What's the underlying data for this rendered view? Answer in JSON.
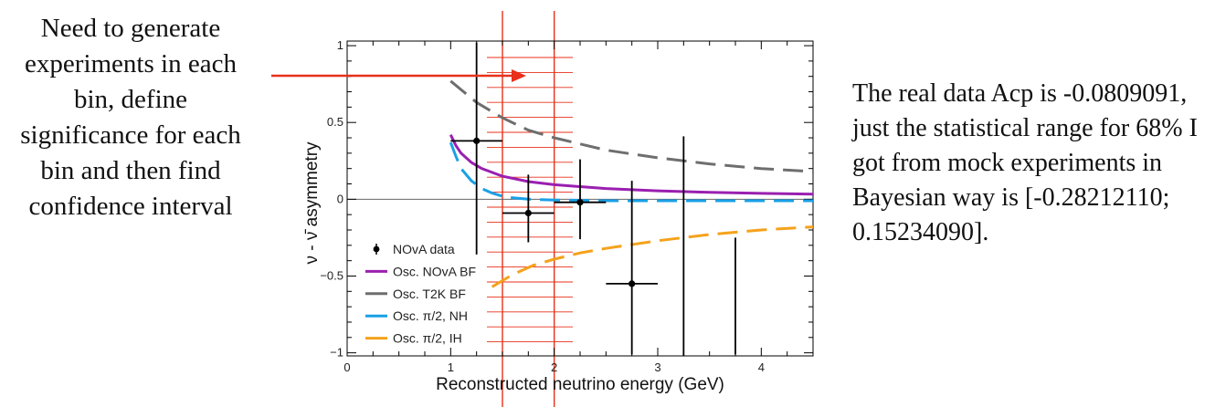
{
  "annotations": {
    "left_note": "Need to generate experiments in each bin, define significance for each bin and then find confidence interval",
    "right_note_lines": [
      "The real data Acp is -0.0809091,",
      "just the statistical range for 68% I",
      "got from mock experiments in",
      "Bayesian way is [-0.28212110;",
      "0.15234090]."
    ]
  },
  "colors": {
    "purple": "#9a1fb0",
    "gray": "#6e6e6e",
    "blue": "#1aa0e6",
    "orange": "#f5a21c",
    "red": "#e8301a"
  },
  "chart_data": {
    "type": "line",
    "xlabel": "Reconstructed neutrino energy (GeV)",
    "ylabel": "ν - ν̄ asymmetry",
    "xlim": [
      0,
      4.5
    ],
    "ylim": [
      -1.02,
      1.03
    ],
    "x_ticks": [
      "0",
      "1",
      "2",
      "3",
      "4"
    ],
    "x_tick_values": [
      0,
      1,
      2,
      3,
      4
    ],
    "y_ticks": [
      "−1",
      "−0.5",
      "0",
      "0.5",
      "1"
    ],
    "y_tick_values": [
      -1,
      -0.5,
      0,
      0.5,
      1
    ],
    "legend_position": "bottom-left",
    "data_points": [
      {
        "x": 1.25,
        "y": 0.38,
        "xerr": 0.25,
        "yerr_low": 0.74,
        "yerr_high": 0.64
      },
      {
        "x": 1.75,
        "y": -0.09,
        "xerr": 0.25,
        "yerr_low": 0.19,
        "yerr_high": 0.25
      },
      {
        "x": 2.25,
        "y": -0.02,
        "xerr": 0.25,
        "yerr_low": 0.24,
        "yerr_high": 0.28
      },
      {
        "x": 2.75,
        "y": -0.55,
        "xerr": 0.25,
        "yerr_low": 0.46,
        "yerr_high": 0.67
      },
      {
        "x": 3.25,
        "y": 0.0,
        "xerr": 0,
        "yerr_low": 1.02,
        "yerr_high": 0.41
      },
      {
        "x": 3.75,
        "y": -0.63,
        "xerr": 0,
        "yerr_low": 0.38,
        "yerr_high": 0.38
      }
    ],
    "series": [
      {
        "name": "Osc. NOvA BF",
        "style": "solid",
        "color": "#9a1fb0",
        "x": [
          1.0,
          1.05,
          1.1,
          1.2,
          1.3,
          1.5,
          1.75,
          2.0,
          2.5,
          3.0,
          3.5,
          4.0,
          4.5
        ],
        "y": [
          0.42,
          0.35,
          0.3,
          0.24,
          0.2,
          0.15,
          0.115,
          0.095,
          0.07,
          0.055,
          0.045,
          0.038,
          0.033
        ]
      },
      {
        "name": "Osc. T2K BF",
        "style": "dashed",
        "color": "#6e6e6e",
        "x": [
          1.0,
          1.25,
          1.5,
          1.75,
          2.0,
          2.5,
          3.0,
          3.5,
          4.0,
          4.5
        ],
        "y": [
          0.77,
          0.63,
          0.53,
          0.45,
          0.4,
          0.32,
          0.27,
          0.23,
          0.2,
          0.18
        ]
      },
      {
        "name": "Osc. π/2, NH",
        "style": "dashed",
        "color": "#1aa0e6",
        "x": [
          1.0,
          1.05,
          1.1,
          1.2,
          1.3,
          1.4,
          1.5,
          1.6,
          1.75,
          2.0,
          2.5,
          3.0,
          3.5,
          4.0,
          4.5
        ],
        "y": [
          0.37,
          0.28,
          0.2,
          0.12,
          0.07,
          0.04,
          0.02,
          0.01,
          0.0,
          -0.005,
          -0.01,
          -0.01,
          -0.01,
          -0.01,
          -0.01
        ]
      },
      {
        "name": "Osc. π/2, IH",
        "style": "dashed",
        "color": "#f5a21c",
        "x": [
          1.4,
          1.6,
          1.8,
          2.0,
          2.25,
          2.5,
          3.0,
          3.5,
          4.0,
          4.5
        ],
        "y": [
          -0.57,
          -0.49,
          -0.43,
          -0.39,
          -0.35,
          -0.32,
          -0.27,
          -0.23,
          -0.2,
          -0.18
        ]
      }
    ],
    "legend": [
      {
        "label": "NOvA data",
        "kind": "marker",
        "color": "#000000"
      },
      {
        "label": "Osc. NOvA BF",
        "kind": "solid",
        "color": "#9a1fb0"
      },
      {
        "label": "Osc. T2K BF",
        "kind": "dashed",
        "color": "#6e6e6e"
      },
      {
        "label": "Osc. π/2, NH",
        "kind": "dashed",
        "color": "#1aa0e6"
      },
      {
        "label": "Osc. π/2, IH",
        "kind": "dashed",
        "color": "#f5a21c"
      }
    ],
    "highlight_bin": {
      "x_low": 1.5,
      "x_high": 2.0,
      "color": "#e8301a"
    }
  }
}
